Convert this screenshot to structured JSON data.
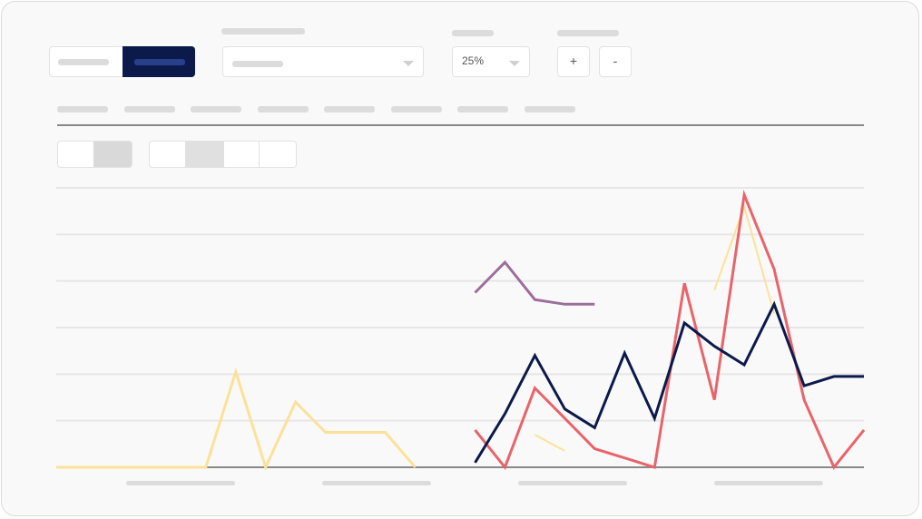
{
  "controls": {
    "zoom_value": "25%",
    "zoom_in_label": "+",
    "zoom_out_label": "-"
  },
  "colors": {
    "navy": "#0b1a4a",
    "red": "#e8646a",
    "yellow": "#fde19a",
    "purple": "#9c6e9c",
    "grid": "#e6e6e6",
    "axis": "#888888"
  },
  "chart_data": {
    "type": "line",
    "title": "",
    "xlabel": "",
    "ylabel": "",
    "x": [
      0,
      1,
      2,
      3,
      4,
      5,
      6,
      7,
      8,
      9,
      10,
      11,
      12,
      13,
      14,
      15,
      16,
      17,
      18,
      19,
      20,
      21,
      22,
      23,
      24,
      25,
      26,
      27
    ],
    "ylim": [
      0,
      6
    ],
    "grid": true,
    "series": [
      {
        "color": "#fde19a",
        "width": 3,
        "values": [
          0,
          0,
          0,
          0,
          0,
          0,
          2.05,
          0,
          1.4,
          0.75,
          0.75,
          0.75,
          0,
          null,
          null,
          null,
          null,
          null,
          null,
          null,
          null,
          null,
          null,
          null,
          null,
          null,
          null,
          null
        ]
      },
      {
        "color": "#fde19a",
        "width": 2,
        "values": [
          null,
          null,
          null,
          null,
          null,
          null,
          null,
          null,
          null,
          null,
          null,
          null,
          null,
          null,
          null,
          null,
          0.7,
          0.35,
          null,
          null,
          null,
          null,
          null,
          null,
          null,
          null,
          null,
          null
        ]
      },
      {
        "color": "#fde19a",
        "width": 2,
        "values": [
          null,
          null,
          null,
          null,
          null,
          null,
          null,
          null,
          null,
          null,
          null,
          null,
          null,
          null,
          null,
          null,
          null,
          null,
          null,
          null,
          null,
          null,
          3.8,
          5.6,
          3.3,
          null,
          null,
          null
        ]
      },
      {
        "color": "#9c6e9c",
        "width": 3,
        "values": [
          null,
          null,
          null,
          null,
          null,
          null,
          null,
          null,
          null,
          null,
          null,
          null,
          null,
          null,
          3.75,
          4.4,
          3.6,
          3.5,
          3.5,
          null,
          null,
          null,
          null,
          null,
          null,
          null,
          null,
          null
        ]
      },
      {
        "color": "#e8646a",
        "width": 3,
        "values": [
          null,
          null,
          null,
          null,
          null,
          null,
          null,
          null,
          null,
          null,
          null,
          null,
          null,
          null,
          0.8,
          0,
          1.7,
          1.05,
          0.4,
          0.2,
          0,
          3.95,
          1.45,
          5.85,
          4.25,
          1.45,
          0,
          0.8
        ]
      },
      {
        "color": "#0b1a4a",
        "width": 3,
        "values": [
          null,
          null,
          null,
          null,
          null,
          null,
          null,
          null,
          null,
          null,
          null,
          null,
          null,
          null,
          0.1,
          1.15,
          2.4,
          1.25,
          0.85,
          2.45,
          1.05,
          3.1,
          2.6,
          2.2,
          3.5,
          1.75,
          1.95,
          1.95
        ]
      }
    ]
  }
}
